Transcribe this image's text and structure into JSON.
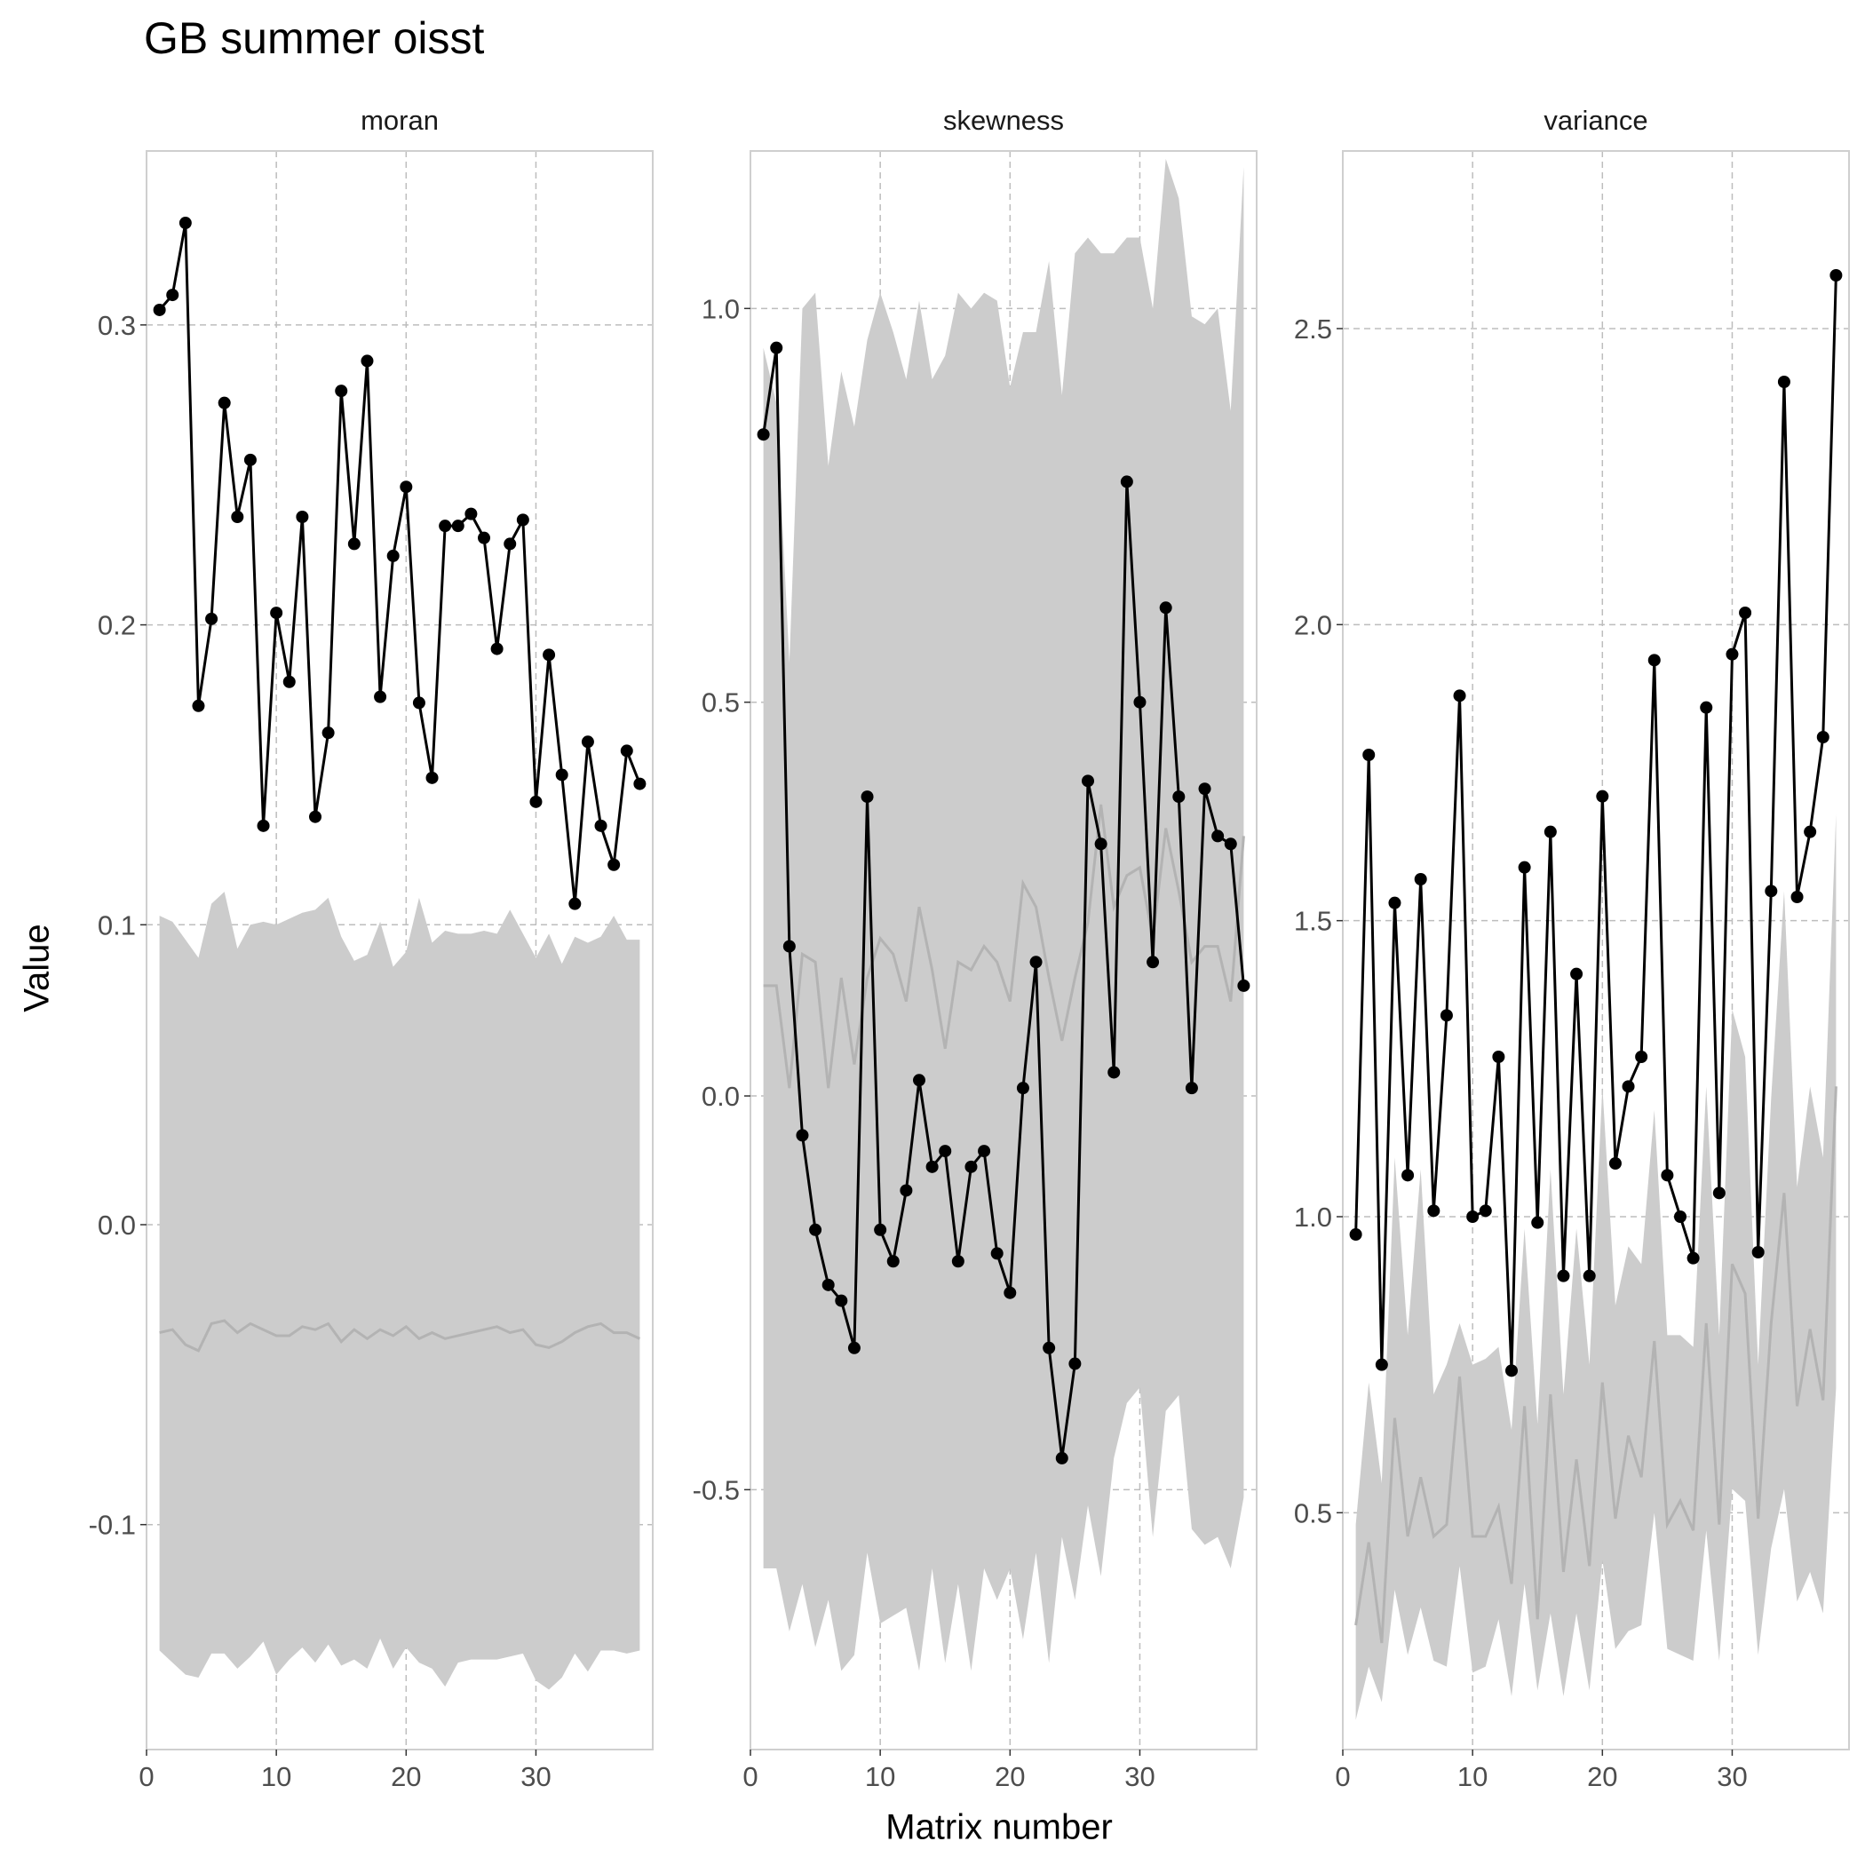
{
  "title": "GB summer oisst",
  "xlabel": "Matrix number",
  "ylabel": "Value",
  "colors": {
    "ribbon": "#cccccc",
    "median_line": "#b3b3b3",
    "observed": "#000000",
    "grid": "#bdbdbd",
    "border": "#cfcfcf"
  },
  "chart_data": [
    {
      "type": "line",
      "panel": "moran",
      "xlim": [
        0,
        39
      ],
      "ylim": [
        -0.175,
        0.358
      ],
      "x_ticks": [
        0,
        10,
        20,
        30
      ],
      "y_ticks": [
        -0.1,
        0.0,
        0.1,
        0.2,
        0.3
      ],
      "x_tick_labels": [
        "0",
        "10",
        "20",
        "30"
      ],
      "y_tick_labels": [
        "-0.1",
        "0.0",
        "0.1",
        "0.2",
        "0.3"
      ],
      "x": [
        1,
        2,
        3,
        4,
        5,
        6,
        7,
        8,
        9,
        10,
        11,
        12,
        13,
        14,
        15,
        16,
        17,
        18,
        19,
        20,
        21,
        22,
        23,
        24,
        25,
        26,
        27,
        28,
        29,
        30,
        31,
        32,
        33,
        34,
        35,
        36,
        37,
        38
      ],
      "observed": [
        0.305,
        0.31,
        0.334,
        0.173,
        0.202,
        0.274,
        0.236,
        0.255,
        0.133,
        0.204,
        0.181,
        0.236,
        0.136,
        0.164,
        0.278,
        0.227,
        0.288,
        0.176,
        0.223,
        0.246,
        0.174,
        0.149,
        0.233,
        0.233,
        0.237,
        0.229,
        0.192,
        0.227,
        0.235,
        0.141,
        0.19,
        0.15,
        0.107,
        0.161,
        0.133,
        0.12,
        0.158,
        0.147
      ],
      "band_upper": [
        0.103,
        0.101,
        0.095,
        0.089,
        0.107,
        0.111,
        0.092,
        0.1,
        0.101,
        0.1,
        0.102,
        0.104,
        0.105,
        0.109,
        0.096,
        0.088,
        0.09,
        0.101,
        0.086,
        0.091,
        0.109,
        0.094,
        0.098,
        0.097,
        0.097,
        0.098,
        0.097,
        0.105,
        0.097,
        0.089,
        0.097,
        0.087,
        0.096,
        0.094,
        0.096,
        0.103,
        0.095,
        0.095
      ],
      "band_lower": [
        -0.142,
        -0.146,
        -0.15,
        -0.151,
        -0.143,
        -0.143,
        -0.148,
        -0.144,
        -0.139,
        -0.15,
        -0.145,
        -0.141,
        -0.146,
        -0.14,
        -0.147,
        -0.145,
        -0.148,
        -0.138,
        -0.148,
        -0.141,
        -0.146,
        -0.148,
        -0.154,
        -0.146,
        -0.145,
        -0.145,
        -0.145,
        -0.144,
        -0.143,
        -0.152,
        -0.155,
        -0.151,
        -0.143,
        -0.149,
        -0.142,
        -0.142,
        -0.143,
        -0.142
      ],
      "band_median": [
        -0.036,
        -0.035,
        -0.04,
        -0.042,
        -0.033,
        -0.032,
        -0.036,
        -0.033,
        -0.035,
        -0.037,
        -0.037,
        -0.034,
        -0.035,
        -0.033,
        -0.039,
        -0.035,
        -0.038,
        -0.035,
        -0.037,
        -0.034,
        -0.038,
        -0.036,
        -0.038,
        -0.037,
        -0.036,
        -0.035,
        -0.034,
        -0.036,
        -0.035,
        -0.04,
        -0.041,
        -0.039,
        -0.036,
        -0.034,
        -0.033,
        -0.036,
        -0.036,
        -0.038
      ]
    },
    {
      "type": "line",
      "panel": "skewness",
      "xlim": [
        0,
        39
      ],
      "ylim": [
        -0.83,
        1.2
      ],
      "x_ticks": [
        0,
        10,
        20,
        30
      ],
      "y_ticks": [
        -0.5,
        0.0,
        0.5,
        1.0
      ],
      "x_tick_labels": [
        "0",
        "10",
        "20",
        "30"
      ],
      "y_tick_labels": [
        "-0.5",
        "0.0",
        "0.5",
        "1.0"
      ],
      "x": [
        1,
        2,
        3,
        4,
        5,
        6,
        7,
        8,
        9,
        10,
        11,
        12,
        13,
        14,
        15,
        16,
        17,
        18,
        19,
        20,
        21,
        22,
        23,
        24,
        25,
        26,
        27,
        28,
        29,
        30,
        31,
        32,
        33,
        34,
        35,
        36,
        37,
        38
      ],
      "observed": [
        0.84,
        0.95,
        0.19,
        -0.05,
        -0.17,
        -0.24,
        -0.26,
        -0.32,
        0.38,
        -0.17,
        -0.21,
        -0.12,
        0.02,
        -0.09,
        -0.07,
        -0.21,
        -0.09,
        -0.07,
        -0.2,
        -0.25,
        0.01,
        0.17,
        -0.32,
        -0.46,
        -0.34,
        0.4,
        0.32,
        0.03,
        0.78,
        0.5,
        0.17,
        0.62,
        0.38,
        0.01,
        0.39,
        0.33,
        0.32,
        0.14
      ],
      "band_upper": [
        0.95,
        0.88,
        0.55,
        1.0,
        1.02,
        0.8,
        0.92,
        0.85,
        0.96,
        1.02,
        0.97,
        0.91,
        1.01,
        0.91,
        0.94,
        1.02,
        1.0,
        1.02,
        1.01,
        0.9,
        0.97,
        0.97,
        1.06,
        0.89,
        1.07,
        1.09,
        1.07,
        1.07,
        1.09,
        1.09,
        1.0,
        1.19,
        1.14,
        0.99,
        0.98,
        1.0,
        0.87,
        1.18
      ],
      "band_lower": [
        -0.6,
        -0.6,
        -0.68,
        -0.62,
        -0.7,
        -0.64,
        -0.73,
        -0.71,
        -0.58,
        -0.67,
        -0.66,
        -0.65,
        -0.73,
        -0.6,
        -0.72,
        -0.62,
        -0.73,
        -0.6,
        -0.64,
        -0.6,
        -0.69,
        -0.58,
        -0.72,
        -0.56,
        -0.64,
        -0.52,
        -0.61,
        -0.46,
        -0.39,
        -0.37,
        -0.56,
        -0.4,
        -0.38,
        -0.55,
        -0.57,
        -0.56,
        -0.6,
        -0.51
      ],
      "band_median": [
        0.14,
        0.14,
        0.01,
        0.18,
        0.17,
        0.01,
        0.15,
        0.04,
        0.15,
        0.2,
        0.18,
        0.12,
        0.24,
        0.16,
        0.06,
        0.17,
        0.16,
        0.19,
        0.17,
        0.12,
        0.27,
        0.24,
        0.15,
        0.07,
        0.15,
        0.22,
        0.37,
        0.24,
        0.28,
        0.29,
        0.2,
        0.34,
        0.26,
        0.17,
        0.19,
        0.19,
        0.12,
        0.33
      ]
    },
    {
      "type": "line",
      "panel": "variance",
      "xlim": [
        0,
        39
      ],
      "ylim": [
        0.1,
        2.8
      ],
      "x_ticks": [
        0,
        10,
        20,
        30
      ],
      "y_ticks": [
        0.5,
        1.0,
        1.5,
        2.0,
        2.5
      ],
      "x_tick_labels": [
        "0",
        "10",
        "20",
        "30"
      ],
      "y_tick_labels": [
        "0.5",
        "1.0",
        "1.5",
        "2.0",
        "2.5"
      ],
      "x": [
        1,
        2,
        3,
        4,
        5,
        6,
        7,
        8,
        9,
        10,
        11,
        12,
        13,
        14,
        15,
        16,
        17,
        18,
        19,
        20,
        21,
        22,
        23,
        24,
        25,
        26,
        27,
        28,
        29,
        30,
        31,
        32,
        33,
        34,
        35,
        36,
        37,
        38
      ],
      "observed": [
        0.97,
        1.78,
        0.75,
        1.53,
        1.07,
        1.57,
        1.01,
        1.34,
        1.88,
        1.0,
        1.01,
        1.27,
        0.74,
        1.59,
        0.99,
        1.65,
        0.9,
        1.41,
        0.9,
        1.71,
        1.09,
        1.22,
        1.27,
        1.94,
        1.07,
        1.0,
        0.93,
        1.86,
        1.04,
        1.95,
        2.02,
        0.94,
        1.55,
        2.41,
        1.54,
        1.65,
        1.81,
        2.59
      ],
      "band_upper": [
        0.48,
        0.72,
        0.55,
        1.1,
        0.8,
        1.08,
        0.7,
        0.75,
        0.82,
        0.75,
        0.76,
        0.78,
        0.64,
        0.98,
        0.65,
        1.08,
        0.7,
        0.98,
        0.75,
        1.22,
        0.85,
        0.95,
        0.92,
        1.18,
        0.8,
        0.8,
        0.78,
        1.22,
        0.8,
        1.35,
        1.27,
        0.75,
        1.2,
        1.55,
        1.05,
        1.22,
        1.1,
        1.68
      ],
      "band_lower": [
        0.15,
        0.24,
        0.18,
        0.37,
        0.26,
        0.34,
        0.25,
        0.24,
        0.41,
        0.23,
        0.24,
        0.32,
        0.19,
        0.38,
        0.2,
        0.33,
        0.19,
        0.33,
        0.2,
        0.42,
        0.27,
        0.3,
        0.31,
        0.5,
        0.27,
        0.26,
        0.25,
        0.47,
        0.25,
        0.54,
        0.52,
        0.26,
        0.44,
        0.54,
        0.35,
        0.4,
        0.33,
        0.71
      ],
      "band_median": [
        0.31,
        0.45,
        0.28,
        0.66,
        0.46,
        0.56,
        0.46,
        0.48,
        0.73,
        0.46,
        0.46,
        0.51,
        0.38,
        0.68,
        0.32,
        0.7,
        0.4,
        0.59,
        0.41,
        0.72,
        0.49,
        0.63,
        0.56,
        0.79,
        0.48,
        0.52,
        0.47,
        0.82,
        0.48,
        0.92,
        0.87,
        0.49,
        0.82,
        1.04,
        0.68,
        0.81,
        0.69,
        1.22
      ]
    }
  ]
}
